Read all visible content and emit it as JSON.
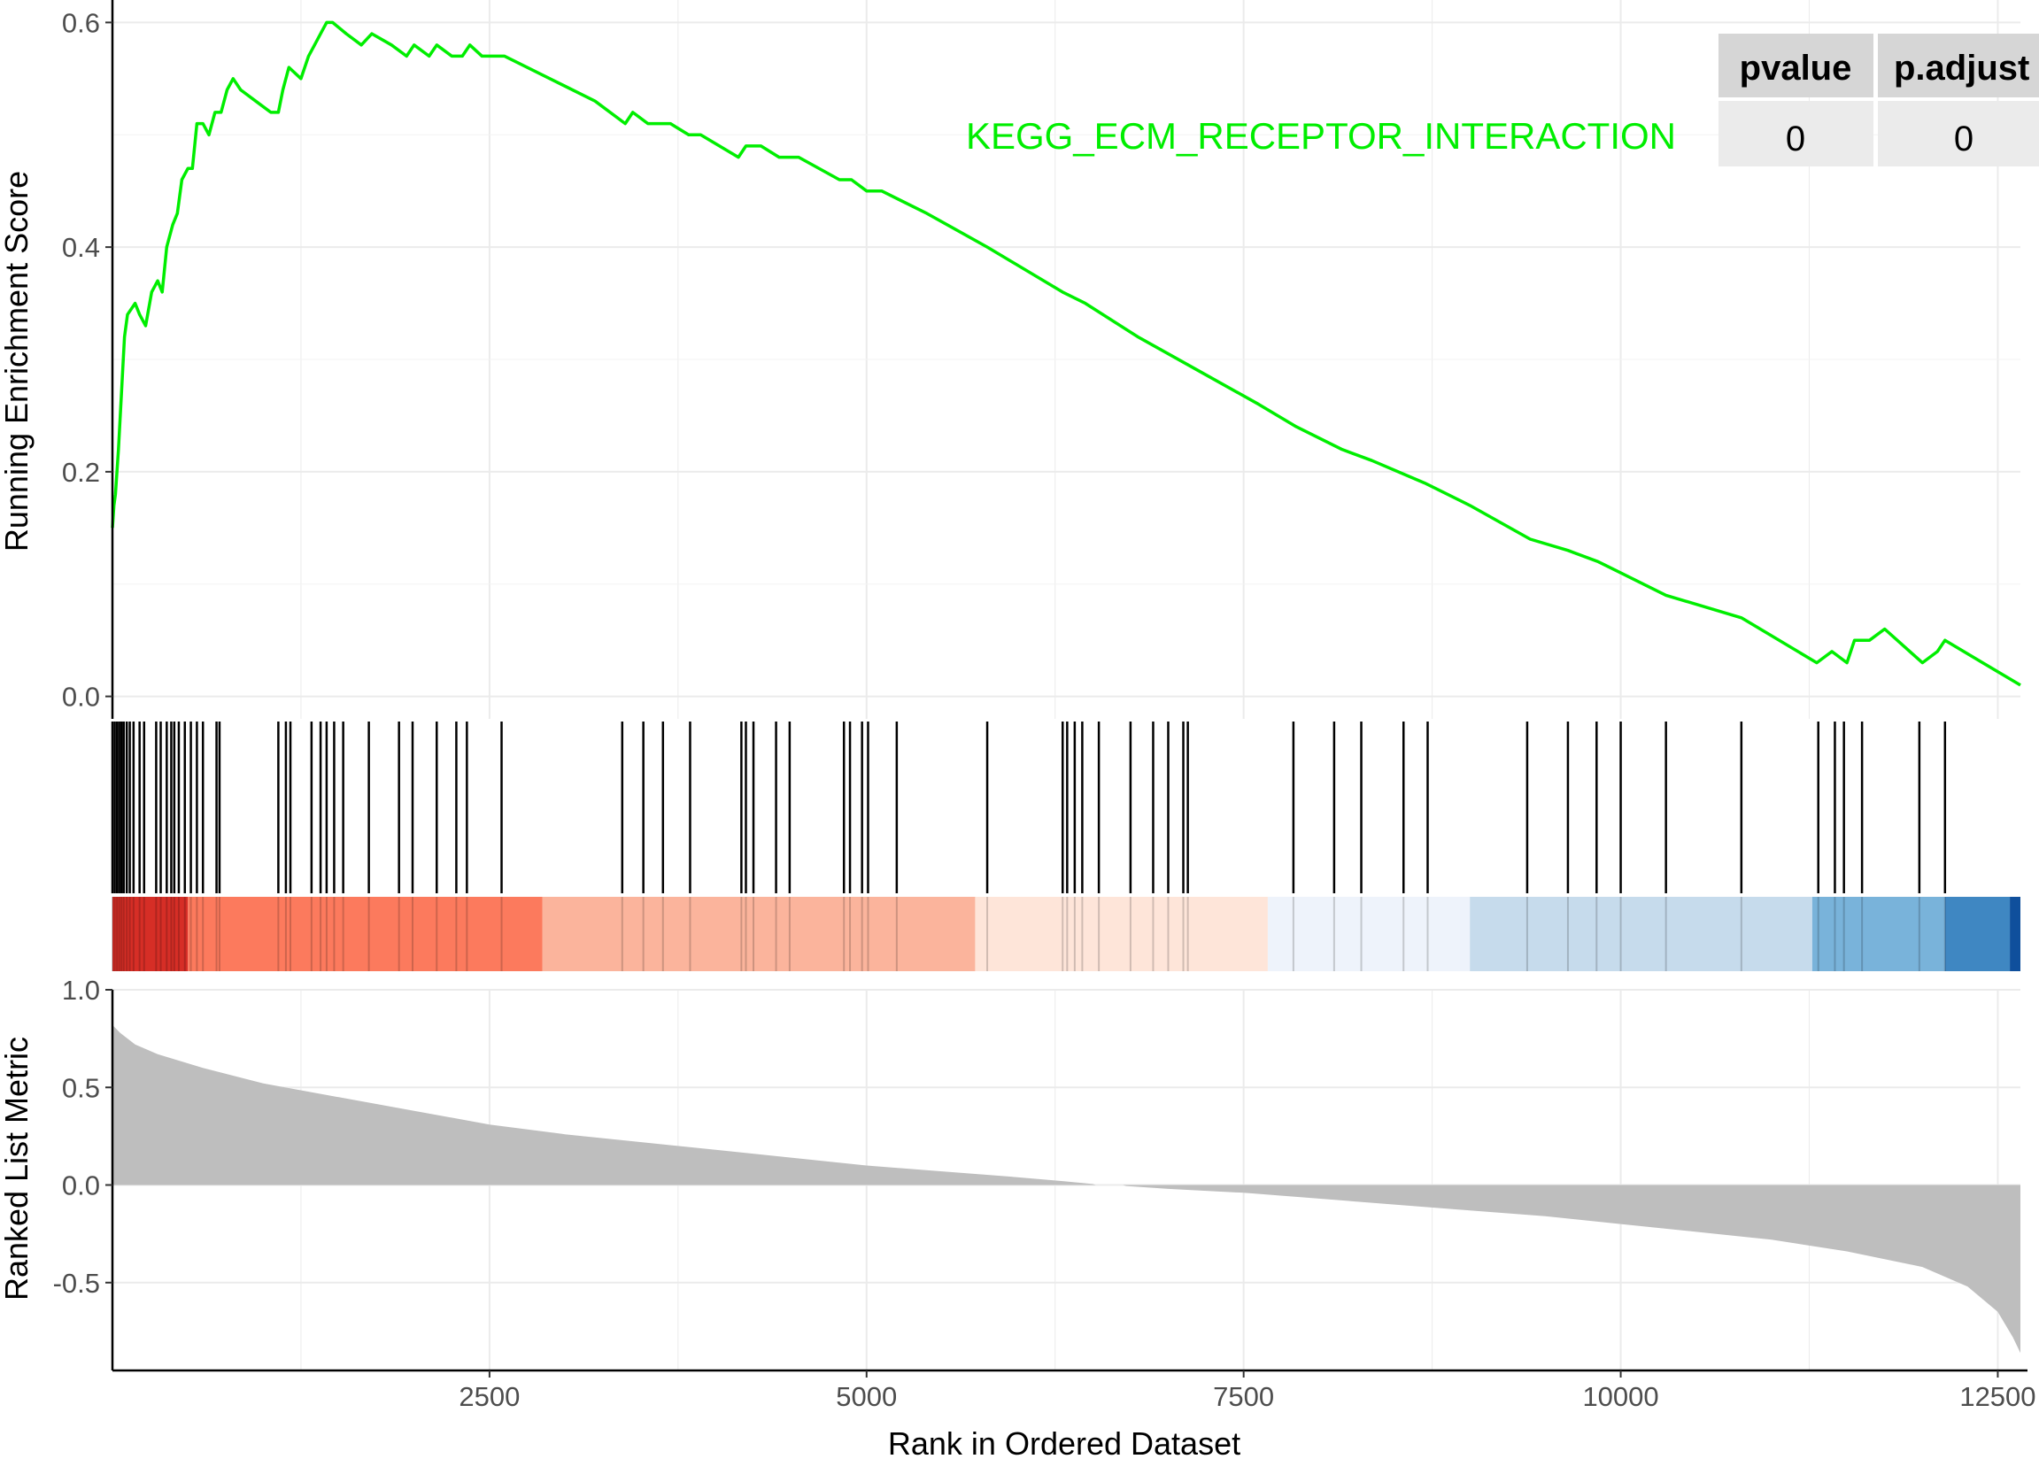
{
  "chart_data": {
    "type": "line",
    "gene_set": "KEGG_ECM_RECEPTOR_INTERACTION",
    "line_color": "#00ee00",
    "table": {
      "headers": [
        "pvalue",
        "p.adjust"
      ],
      "values": [
        "0",
        "0"
      ]
    },
    "es_panel": {
      "ylabel": "Running Enrichment Score",
      "ylim": [
        -0.02,
        0.62
      ],
      "yticks": [
        "0.0",
        "0.2",
        "0.4",
        "0.6"
      ],
      "points": [
        [
          0,
          0.15
        ],
        [
          10,
          0.17
        ],
        [
          20,
          0.18
        ],
        [
          40,
          0.22
        ],
        [
          60,
          0.27
        ],
        [
          80,
          0.32
        ],
        [
          100,
          0.34
        ],
        [
          150,
          0.35
        ],
        [
          180,
          0.34
        ],
        [
          220,
          0.33
        ],
        [
          260,
          0.36
        ],
        [
          300,
          0.37
        ],
        [
          330,
          0.36
        ],
        [
          360,
          0.4
        ],
        [
          400,
          0.42
        ],
        [
          430,
          0.43
        ],
        [
          460,
          0.46
        ],
        [
          500,
          0.47
        ],
        [
          530,
          0.47
        ],
        [
          560,
          0.51
        ],
        [
          600,
          0.51
        ],
        [
          640,
          0.5
        ],
        [
          680,
          0.52
        ],
        [
          720,
          0.52
        ],
        [
          760,
          0.54
        ],
        [
          800,
          0.55
        ],
        [
          850,
          0.54
        ],
        [
          950,
          0.53
        ],
        [
          1050,
          0.52
        ],
        [
          1100,
          0.52
        ],
        [
          1130,
          0.54
        ],
        [
          1170,
          0.56
        ],
        [
          1250,
          0.55
        ],
        [
          1300,
          0.57
        ],
        [
          1340,
          0.58
        ],
        [
          1380,
          0.59
        ],
        [
          1420,
          0.6
        ],
        [
          1460,
          0.6
        ],
        [
          1550,
          0.59
        ],
        [
          1650,
          0.58
        ],
        [
          1720,
          0.59
        ],
        [
          1850,
          0.58
        ],
        [
          1950,
          0.57
        ],
        [
          2000,
          0.58
        ],
        [
          2100,
          0.57
        ],
        [
          2150,
          0.58
        ],
        [
          2250,
          0.57
        ],
        [
          2320,
          0.57
        ],
        [
          2370,
          0.58
        ],
        [
          2450,
          0.57
        ],
        [
          2550,
          0.57
        ],
        [
          2600,
          0.57
        ],
        [
          2900,
          0.55
        ],
        [
          3200,
          0.53
        ],
        [
          3400,
          0.51
        ],
        [
          3450,
          0.52
        ],
        [
          3550,
          0.51
        ],
        [
          3700,
          0.51
        ],
        [
          3820,
          0.5
        ],
        [
          3900,
          0.5
        ],
        [
          4150,
          0.48
        ],
        [
          4200,
          0.49
        ],
        [
          4300,
          0.49
        ],
        [
          4420,
          0.48
        ],
        [
          4550,
          0.48
        ],
        [
          4820,
          0.46
        ],
        [
          4900,
          0.46
        ],
        [
          5000,
          0.45
        ],
        [
          5100,
          0.45
        ],
        [
          5400,
          0.43
        ],
        [
          5800,
          0.4
        ],
        [
          6300,
          0.36
        ],
        [
          6450,
          0.35
        ],
        [
          6800,
          0.32
        ],
        [
          7200,
          0.29
        ],
        [
          7600,
          0.26
        ],
        [
          7850,
          0.24
        ],
        [
          8150,
          0.22
        ],
        [
          8350,
          0.21
        ],
        [
          8700,
          0.19
        ],
        [
          9000,
          0.17
        ],
        [
          9400,
          0.14
        ],
        [
          9650,
          0.13
        ],
        [
          9850,
          0.12
        ],
        [
          10000,
          0.11
        ],
        [
          10300,
          0.09
        ],
        [
          10800,
          0.07
        ],
        [
          11300,
          0.03
        ],
        [
          11400,
          0.04
        ],
        [
          11500,
          0.03
        ],
        [
          11550,
          0.05
        ],
        [
          11650,
          0.05
        ],
        [
          11750,
          0.06
        ],
        [
          12000,
          0.03
        ],
        [
          12100,
          0.04
        ],
        [
          12150,
          0.05
        ],
        [
          12400,
          0.03
        ],
        [
          12650,
          0.01
        ]
      ]
    },
    "hits": [
      0,
      15,
      30,
      45,
      60,
      75,
      95,
      115,
      140,
      180,
      210,
      290,
      320,
      360,
      390,
      410,
      440,
      480,
      520,
      560,
      600,
      690,
      710,
      1100,
      1150,
      1180,
      1320,
      1380,
      1420,
      1470,
      1530,
      1700,
      1900,
      1990,
      2150,
      2280,
      2350,
      2580,
      3380,
      3520,
      3650,
      3830,
      4170,
      4200,
      4250,
      4400,
      4490,
      4850,
      4890,
      4970,
      5010,
      5200,
      5800,
      6300,
      6330,
      6380,
      6430,
      6540,
      6750,
      6900,
      7000,
      7100,
      7130,
      7830,
      8100,
      8280,
      8560,
      8720,
      9380,
      9650,
      9840,
      10000,
      10300,
      10800,
      11310,
      11420,
      11480,
      11600,
      11980,
      12150
    ],
    "color_bands": [
      {
        "from": 0,
        "to": 500,
        "color": "#d62e26"
      },
      {
        "from": 500,
        "to": 2850,
        "color": "#fc7a5d"
      },
      {
        "from": 2850,
        "to": 5720,
        "color": "#fbb49c"
      },
      {
        "from": 5720,
        "to": 7660,
        "color": "#fee5d9"
      },
      {
        "from": 7660,
        "to": 9000,
        "color": "#eef3fb"
      },
      {
        "from": 9000,
        "to": 11270,
        "color": "#c6dbec"
      },
      {
        "from": 11270,
        "to": 12150,
        "color": "#79b3da"
      },
      {
        "from": 12150,
        "to": 12580,
        "color": "#3f87c2"
      },
      {
        "from": 12580,
        "to": 12650,
        "color": "#0f4f9c"
      }
    ],
    "metric_panel": {
      "ylabel": "Ranked List Metric",
      "ylim": [
        -0.95,
        1.0
      ],
      "yticks": [
        "1.0",
        "0.5",
        "0.0",
        "-0.5"
      ],
      "fill_color": "#bebebe",
      "profile": [
        [
          0,
          0.82
        ],
        [
          50,
          0.78
        ],
        [
          150,
          0.72
        ],
        [
          300,
          0.67
        ],
        [
          600,
          0.6
        ],
        [
          1000,
          0.52
        ],
        [
          1500,
          0.45
        ],
        [
          2000,
          0.38
        ],
        [
          2500,
          0.31
        ],
        [
          3000,
          0.26
        ],
        [
          3500,
          0.22
        ],
        [
          4000,
          0.18
        ],
        [
          4500,
          0.14
        ],
        [
          5000,
          0.1
        ],
        [
          5500,
          0.07
        ],
        [
          6000,
          0.04
        ],
        [
          6300,
          0.02
        ],
        [
          6500,
          0.005
        ],
        [
          6520,
          0.0
        ],
        [
          6700,
          0.0
        ],
        [
          6720,
          -0.005
        ],
        [
          7000,
          -0.02
        ],
        [
          7500,
          -0.04
        ],
        [
          8000,
          -0.07
        ],
        [
          8500,
          -0.1
        ],
        [
          9000,
          -0.13
        ],
        [
          9500,
          -0.16
        ],
        [
          10000,
          -0.2
        ],
        [
          10500,
          -0.24
        ],
        [
          11000,
          -0.28
        ],
        [
          11500,
          -0.34
        ],
        [
          12000,
          -0.42
        ],
        [
          12300,
          -0.52
        ],
        [
          12500,
          -0.65
        ],
        [
          12600,
          -0.78
        ],
        [
          12650,
          -0.86
        ]
      ]
    },
    "xlabel": "Rank in Ordered Dataset",
    "xlim": [
      0,
      12650
    ],
    "xticks": [
      "2500",
      "5000",
      "7500",
      "10000",
      "12500"
    ]
  }
}
